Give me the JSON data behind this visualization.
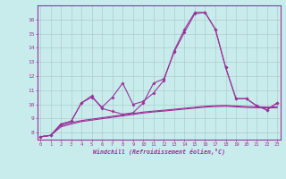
{
  "title": "",
  "xlabel": "Windchill (Refroidissement éolien,°C)",
  "ylabel": "",
  "bg_color": "#c8ecec",
  "line_color": "#993399",
  "grid_color": "#b0cccc",
  "xmin": 0,
  "xmax": 23,
  "ymin": 7.5,
  "ymax": 17.0,
  "yticks": [
    8,
    9,
    10,
    11,
    12,
    13,
    14,
    15,
    16
  ],
  "xticks": [
    0,
    1,
    2,
    3,
    4,
    5,
    6,
    7,
    8,
    9,
    10,
    11,
    12,
    13,
    14,
    15,
    16,
    17,
    18,
    19,
    20,
    21,
    22,
    23
  ],
  "series_main": [
    7.7,
    7.8,
    8.6,
    8.8,
    10.1,
    10.6,
    9.7,
    9.5,
    9.3,
    9.4,
    10.1,
    11.5,
    11.8,
    13.7,
    15.1,
    16.4,
    16.5,
    15.3,
    12.6,
    10.4,
    10.4,
    9.9,
    9.6,
    10.1
  ],
  "series_alt": [
    7.7,
    7.8,
    8.6,
    8.8,
    10.1,
    10.5,
    9.8,
    10.5,
    11.5,
    10.0,
    10.2,
    10.8,
    11.7,
    13.8,
    15.3,
    16.5,
    16.5,
    15.3,
    12.6,
    10.4,
    10.4,
    9.9,
    9.6,
    10.1
  ],
  "series_flat1": [
    7.7,
    7.8,
    8.5,
    8.7,
    8.85,
    8.95,
    9.05,
    9.15,
    9.25,
    9.35,
    9.45,
    9.52,
    9.58,
    9.65,
    9.72,
    9.79,
    9.86,
    9.9,
    9.92,
    9.88,
    9.84,
    9.82,
    9.8,
    9.82
  ],
  "series_flat2": [
    7.7,
    7.8,
    8.4,
    8.6,
    8.78,
    8.88,
    8.98,
    9.08,
    9.18,
    9.28,
    9.38,
    9.46,
    9.52,
    9.59,
    9.66,
    9.73,
    9.8,
    9.84,
    9.86,
    9.82,
    9.78,
    9.76,
    9.74,
    9.76
  ]
}
